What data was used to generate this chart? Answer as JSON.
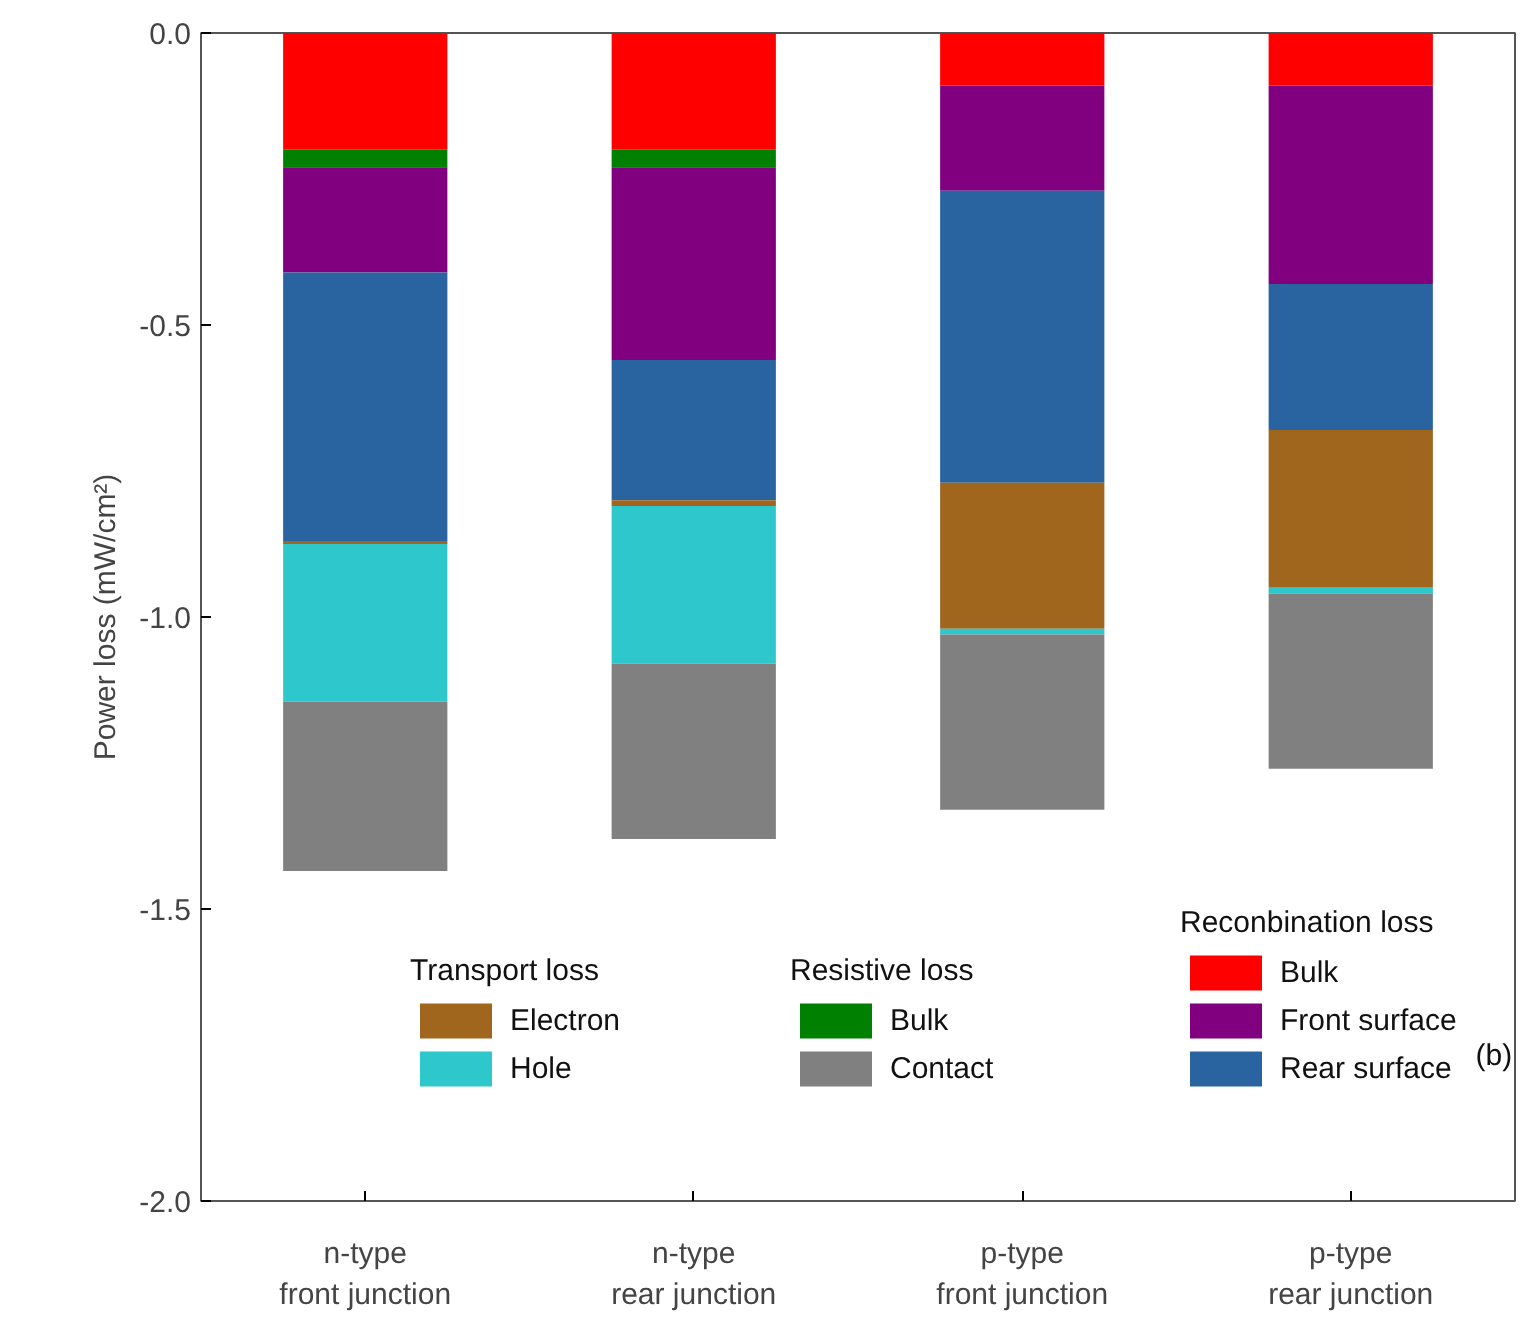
{
  "chart_data": {
    "type": "bar",
    "stacked": true,
    "ylabel": "Power loss (mW/cm²)",
    "categories": [
      "n-type\nfront junction",
      "n-type\nrear junction",
      "p-type\nfront junction",
      "p-type\nrear junction"
    ],
    "series": [
      {
        "name": "Bulk",
        "color": "#ff0000",
        "values": [
          -0.2,
          -0.2,
          -0.09,
          -0.09
        ]
      },
      {
        "name": "Bulk",
        "color": "#008000",
        "values": [
          -0.03,
          -0.03,
          0,
          0
        ]
      },
      {
        "name": "Front surface",
        "color": "#800080",
        "values": [
          -0.18,
          -0.33,
          -0.18,
          -0.34
        ]
      },
      {
        "name": "Rear surface",
        "color": "#2a64a0",
        "values": [
          -0.46,
          -0.24,
          -0.5,
          -0.25
        ]
      },
      {
        "name": "Electron",
        "color": "#a0661e",
        "values": [
          -0.005,
          -0.01,
          -0.25,
          -0.27
        ]
      },
      {
        "name": "Hole",
        "color": "#2ec8cc",
        "values": [
          -0.27,
          -0.27,
          -0.01,
          -0.01
        ]
      },
      {
        "name": "Contact",
        "color": "#808080",
        "values": [
          -0.29,
          -0.3,
          -0.3,
          -0.3
        ]
      }
    ],
    "ylim": [
      -2.0,
      0
    ],
    "yticks": [
      {
        "value": 0,
        "label": "0.0"
      },
      {
        "value": -0.5,
        "label": "-0.5"
      },
      {
        "value": -1.0,
        "label": "-1.0"
      },
      {
        "value": -1.5,
        "label": "-1.5"
      },
      {
        "value": -2.0,
        "label": "-2.0"
      }
    ],
    "legend": "bottom",
    "grid": false,
    "annotations": [
      "Transport loss",
      "Resistive loss",
      "Reconbination loss",
      "(b)"
    ]
  }
}
